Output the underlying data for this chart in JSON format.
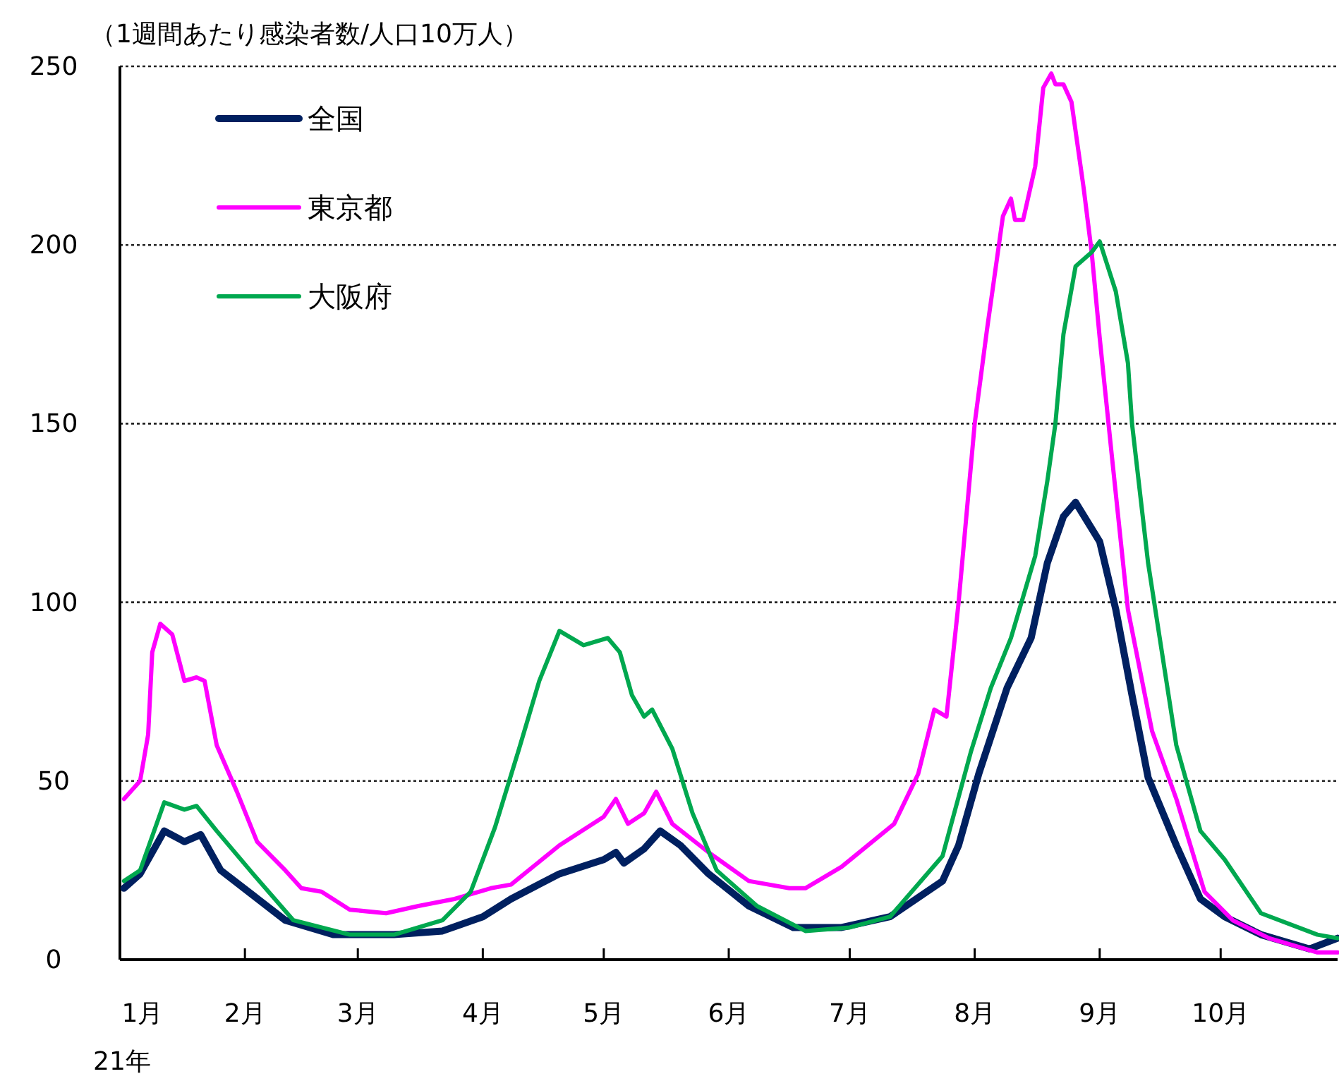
{
  "chart_data": {
    "type": "line",
    "ylabel": "（1週間あたり感染者数/人口10万人）",
    "annotations": [
      "21年"
    ],
    "xlim": [
      "--01-01",
      "--10-30"
    ],
    "xticks": [
      {
        "value": "--01-01",
        "label": "1月"
      },
      {
        "value": "--02-01",
        "label": "2月"
      },
      {
        "value": "--03-01",
        "label": "3月"
      },
      {
        "value": "--04-01",
        "label": "4月"
      },
      {
        "value": "--05-01",
        "label": "5月"
      },
      {
        "value": "--06-01",
        "label": "6月"
      },
      {
        "value": "--07-01",
        "label": "7月"
      },
      {
        "value": "--08-01",
        "label": "8月"
      },
      {
        "value": "--09-01",
        "label": "9月"
      },
      {
        "value": "--10-01",
        "label": "10月"
      }
    ],
    "ylim": [
      0,
      250
    ],
    "yticks": [
      0,
      50,
      100,
      150,
      200,
      250
    ],
    "grid": "y",
    "legend": "top left",
    "marker": "none",
    "line_style": "solid",
    "series": [
      {
        "name": "全国",
        "color": "#002060",
        "x": [
          "--01-02",
          "--01-06",
          "--01-12",
          "--01-17",
          "--01-21",
          "--01-26",
          "--02-03",
          "--02-11",
          "--02-23",
          "--03-10",
          "--03-22",
          "--04-01",
          "--04-08",
          "--04-20",
          "--05-01",
          "--05-04",
          "--05-06",
          "--05-11",
          "--05-15",
          "--05-20",
          "--05-27",
          "--06-06",
          "--06-17",
          "--06-29",
          "--07-11",
          "--07-24",
          "--07-28",
          "--08-02",
          "--08-09",
          "--08-15",
          "--08-19",
          "--08-23",
          "--08-26",
          "--09-01",
          "--09-05",
          "--09-09",
          "--09-13",
          "--09-20",
          "--09-26",
          "--10-02",
          "--10-11",
          "--10-23",
          "--10-30"
        ],
        "values": [
          20,
          24,
          36,
          33,
          35,
          25,
          18,
          11,
          7,
          7,
          8,
          12,
          17,
          24,
          28,
          30,
          27,
          31,
          36,
          32,
          24,
          15,
          9,
          9,
          12,
          22,
          32,
          52,
          76,
          90,
          111,
          124,
          128,
          117,
          98,
          74,
          51,
          32,
          17,
          12,
          7,
          3,
          6
        ]
      },
      {
        "name": "東京都",
        "color": "#ff00ff",
        "x": [
          "--01-02",
          "--01-06",
          "--01-08",
          "--01-09",
          "--01-11",
          "--01-14",
          "--01-17",
          "--01-20",
          "--01-22",
          "--01-25",
          "--01-30",
          "--02-04",
          "--02-11",
          "--02-15",
          "--02-20",
          "--02-27",
          "--03-08",
          "--03-16",
          "--03-25",
          "--04-03",
          "--04-08",
          "--04-20",
          "--05-01",
          "--05-04",
          "--05-07",
          "--05-11",
          "--05-14",
          "--05-18",
          "--05-27",
          "--06-06",
          "--06-16",
          "--06-20",
          "--06-29",
          "--07-12",
          "--07-18",
          "--07-22",
          "--07-25",
          "--07-28",
          "--08-01",
          "--08-04",
          "--08-08",
          "--08-10",
          "--08-11",
          "--08-13",
          "--08-16",
          "--08-18",
          "--08-20",
          "--08-21",
          "--08-23",
          "--08-25",
          "--08-28",
          "--08-30",
          "--09-01",
          "--09-04",
          "--09-08",
          "--09-14",
          "--09-20",
          "--09-27",
          "--10-04",
          "--10-13",
          "--10-25",
          "--10-30"
        ],
        "values": [
          45,
          50,
          63,
          86,
          94,
          91,
          78,
          79,
          78,
          60,
          47,
          33,
          25,
          20,
          19,
          14,
          13,
          15,
          17,
          20,
          21,
          32,
          40,
          45,
          38,
          41,
          47,
          38,
          30,
          22,
          20,
          20,
          26,
          38,
          52,
          70,
          68,
          100,
          150,
          176,
          208,
          213,
          207,
          207,
          222,
          244,
          248,
          245,
          245,
          240,
          216,
          198,
          174,
          141,
          98,
          64,
          45,
          19,
          11,
          6,
          2,
          2
        ]
      },
      {
        "name": "大阪府",
        "color": "#00a84f",
        "x": [
          "--01-02",
          "--01-06",
          "--01-12",
          "--01-17",
          "--01-20",
          "--01-25",
          "--02-03",
          "--02-13",
          "--02-27",
          "--03-10",
          "--03-22",
          "--03-29",
          "--04-04",
          "--04-10",
          "--04-15",
          "--04-20",
          "--04-26",
          "--05-02",
          "--05-05",
          "--05-08",
          "--05-11",
          "--05-13",
          "--05-18",
          "--05-23",
          "--05-29",
          "--06-08",
          "--06-20",
          "--07-01",
          "--07-11",
          "--07-24",
          "--07-31",
          "--08-05",
          "--08-10",
          "--08-16",
          "--08-19",
          "--08-21",
          "--08-23",
          "--08-26",
          "--08-30",
          "--09-01",
          "--09-05",
          "--09-08",
          "--09-09",
          "--09-13",
          "--09-20",
          "--09-26",
          "--10-02",
          "--10-11",
          "--10-25",
          "--10-30"
        ],
        "values": [
          22,
          25,
          44,
          42,
          43,
          36,
          24,
          11,
          7,
          7,
          11,
          19,
          37,
          59,
          78,
          92,
          88,
          90,
          86,
          74,
          68,
          70,
          59,
          41,
          25,
          15,
          8,
          9,
          12,
          29,
          58,
          76,
          90,
          113,
          134,
          150,
          175,
          194,
          198,
          201,
          187,
          167,
          150,
          111,
          60,
          36,
          28,
          13,
          7,
          6
        ]
      }
    ]
  }
}
